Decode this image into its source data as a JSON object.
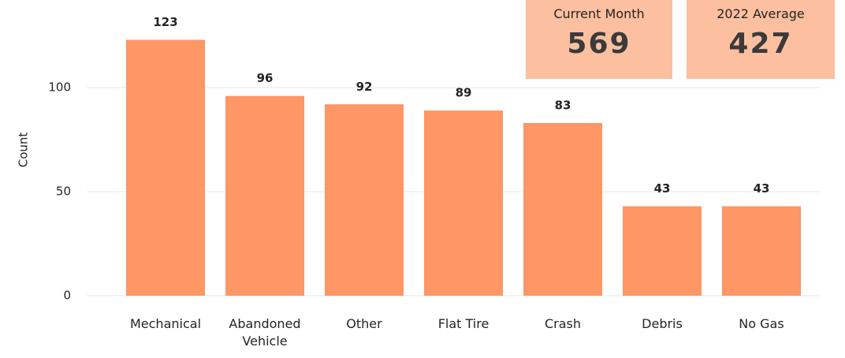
{
  "chart_data": {
    "type": "bar",
    "y_label": "Count",
    "categories": [
      "Mechanical",
      "Abandoned Vehicle",
      "Other",
      "Flat Tire",
      "Crash",
      "Debris",
      "No Gas"
    ],
    "values": [
      123,
      96,
      92,
      89,
      83,
      43,
      43
    ],
    "color": "#fe9666",
    "ylim": [
      0,
      130
    ],
    "yticks": [
      0,
      50,
      100
    ],
    "grid": true
  },
  "cards": [
    {
      "label": "Current Month",
      "value": 569
    },
    {
      "label": "2022 Average",
      "value": 427
    }
  ]
}
